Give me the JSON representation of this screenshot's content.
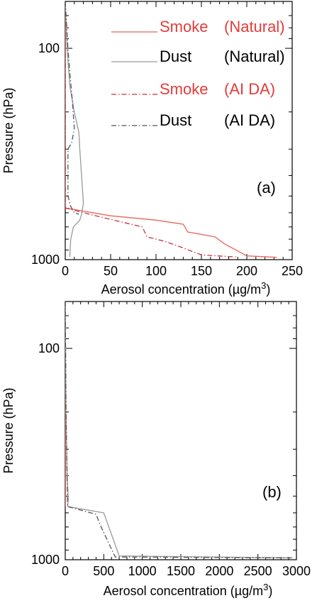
{
  "chart_data": [
    {
      "type": "line",
      "panel_label": "(a)",
      "xlabel": "Aerosol concentration (µg/m",
      "xlabel_sup": "3",
      "xlabel_end": ")",
      "ylabel": "Pressure (hPa)",
      "xlim": [
        0,
        250
      ],
      "ylim": [
        1000,
        60
      ],
      "y_scale": "log",
      "x_ticks": [
        0,
        50,
        100,
        150,
        200,
        250
      ],
      "x_tick_labels": [
        "0",
        "50",
        "100",
        "150",
        "200",
        "250"
      ],
      "y_ticks": [
        100,
        1000
      ],
      "y_tick_labels": [
        "100",
        "1000"
      ],
      "legend_position": "top-right",
      "series": [
        {
          "name": "Smoke",
          "name_suffix": "(Natural)",
          "color": "#e8645a",
          "dash": "solid",
          "x": [
            0,
            0,
            0.5,
            50,
            100,
            130,
            135,
            165,
            175,
            200,
            233
          ],
          "y": [
            60,
            550,
            570,
            620,
            650,
            680,
            740,
            780,
            840,
            960,
            975
          ]
        },
        {
          "name": "Dust",
          "name_suffix": "(Natural)",
          "color": "#999999",
          "dash": "solid",
          "x": [
            0,
            2,
            5,
            10,
            15,
            16,
            18,
            20,
            18,
            16,
            9,
            6,
            5
          ],
          "y": [
            60,
            100,
            150,
            200,
            250,
            300,
            400,
            540,
            610,
            650,
            700,
            800,
            970
          ]
        },
        {
          "name": "Smoke",
          "name_suffix": "(AI DA)",
          "color": "#cc2f43",
          "dash": "dashdot",
          "x": [
            0,
            0,
            0.5,
            40,
            85,
            90,
            110,
            130,
            150,
            188
          ],
          "y": [
            60,
            550,
            570,
            630,
            700,
            780,
            820,
            880,
            950,
            970
          ]
        },
        {
          "name": "Dust",
          "name_suffix": "(AI DA)",
          "color": "#555555",
          "dash": "dashdot",
          "x": [
            0,
            3,
            5,
            8,
            10,
            7,
            3,
            3,
            6,
            10,
            15
          ],
          "y": [
            60,
            100,
            130,
            180,
            240,
            280,
            300,
            500,
            560,
            600,
            610
          ]
        }
      ]
    },
    {
      "type": "line",
      "panel_label": "(b)",
      "xlabel": "Aerosol concentration (µg/m",
      "xlabel_sup": "3",
      "xlabel_end": ")",
      "ylabel": "Pressure (hPa)",
      "xlim": [
        0,
        3000
      ],
      "ylim": [
        1000,
        60
      ],
      "y_scale": "log",
      "x_ticks": [
        0,
        500,
        1000,
        1500,
        2000,
        2500,
        3000
      ],
      "x_tick_labels": [
        "0",
        "500",
        "1000",
        "1500",
        "2000",
        "2500",
        "3000"
      ],
      "y_ticks": [
        100,
        1000
      ],
      "y_tick_labels": [
        "100",
        "1000"
      ],
      "series": [
        {
          "name": "",
          "color": "#e8645a",
          "dash": "solid",
          "x": [
            0,
            2,
            5,
            3,
            0
          ],
          "y": [
            60,
            200,
            400,
            520,
            560
          ]
        },
        {
          "name": "",
          "color": "#999999",
          "dash": "solid",
          "x": [
            0,
            10,
            25,
            40,
            30,
            500,
            700,
            2950
          ],
          "y": [
            60,
            200,
            400,
            520,
            560,
            600,
            960,
            980
          ]
        },
        {
          "name": "",
          "color": "#555555",
          "dash": "dashdot",
          "x": [
            0,
            10,
            30,
            400,
            450,
            630,
            650,
            2950
          ],
          "y": [
            60,
            200,
            560,
            610,
            680,
            940,
            970,
            980
          ]
        }
      ]
    }
  ]
}
